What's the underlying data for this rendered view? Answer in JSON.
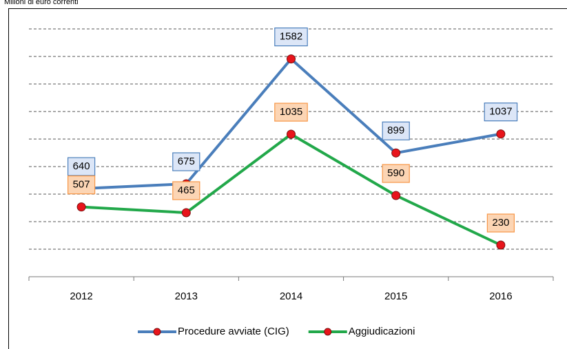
{
  "chart_data": {
    "type": "line",
    "title": "Milioni di euro correnti",
    "categories": [
      "2012",
      "2013",
      "2014",
      "2015",
      "2016"
    ],
    "series": [
      {
        "name": "Procedure avviate (CIG)",
        "color": "#4a7ebb",
        "values": [
          640,
          675,
          1582,
          899,
          1037
        ]
      },
      {
        "name": "Aggiudicazioni",
        "color": "#22a84a",
        "values": [
          507,
          465,
          1035,
          590,
          230
        ]
      }
    ],
    "marker_color": "#e8141b",
    "ylim": [
      0,
      1800
    ],
    "yticks": [
      200,
      400,
      600,
      800,
      1000,
      1200,
      1400,
      1600,
      1800
    ],
    "grid": true,
    "legend": "bottom"
  }
}
